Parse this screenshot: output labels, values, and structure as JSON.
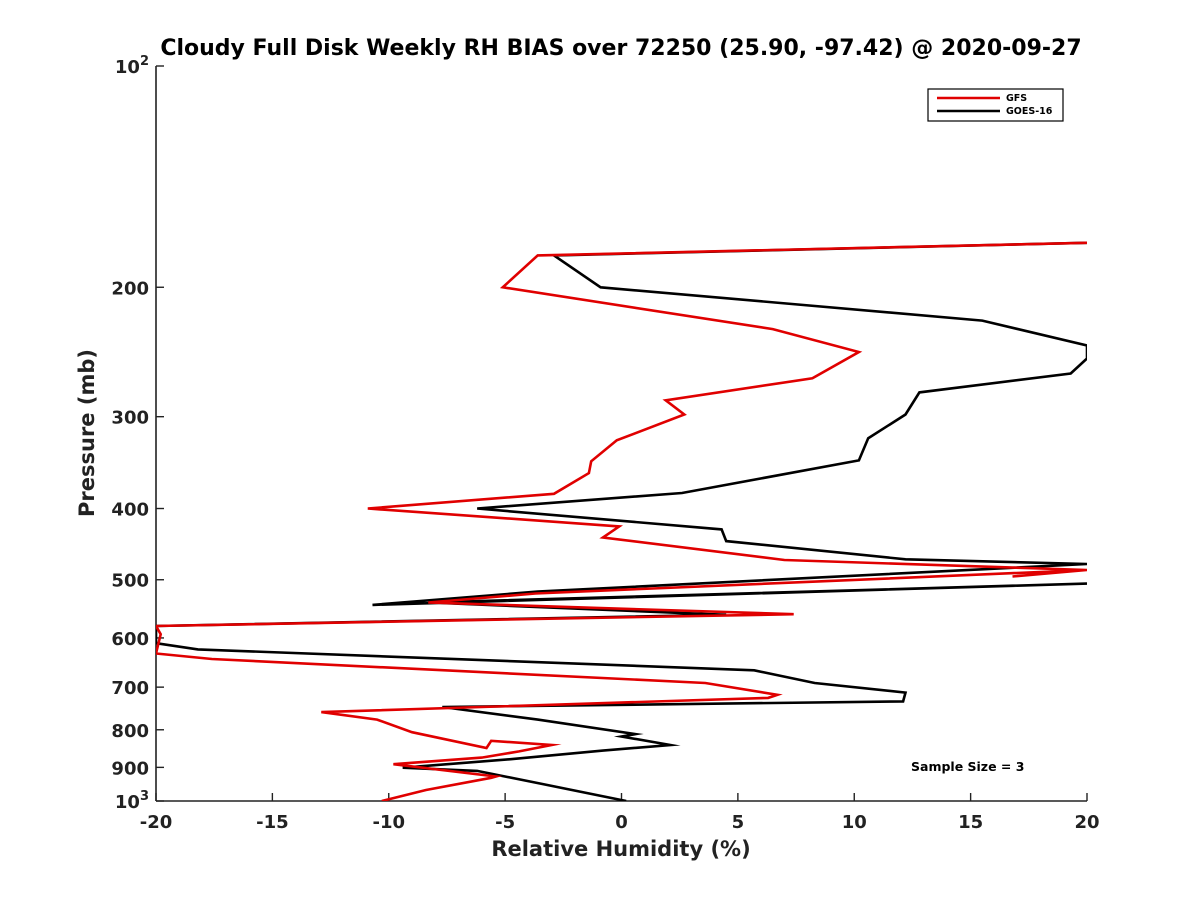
{
  "chart_data": {
    "type": "line",
    "title": "Cloudy Full Disk Weekly RH BIAS over 72250 (25.90, -97.42) @ 2020-09-27",
    "xlabel": "Relative Humidity (%)",
    "ylabel": "Pressure (mb)",
    "xlim": [
      -20,
      20
    ],
    "ylim": [
      100,
      1000
    ],
    "yscale": "log",
    "y_reversed": true,
    "grid": false,
    "legend_position": "top-right",
    "xticks": [
      -20,
      -15,
      -10,
      -5,
      0,
      5,
      10,
      15,
      20
    ],
    "yticks": [
      {
        "value": 100,
        "label": "10",
        "sup": "2"
      },
      {
        "value": 200,
        "label": "200"
      },
      {
        "value": 300,
        "label": "300"
      },
      {
        "value": 400,
        "label": "400"
      },
      {
        "value": 500,
        "label": "500"
      },
      {
        "value": 600,
        "label": "600"
      },
      {
        "value": 700,
        "label": "700"
      },
      {
        "value": 800,
        "label": "800"
      },
      {
        "value": 900,
        "label": "900"
      },
      {
        "value": 1000,
        "label": "10",
        "sup": "3"
      }
    ],
    "series": [
      {
        "name": "GFS",
        "color": "#e00000",
        "x": [
          20,
          -3.6,
          -5.1,
          6.5,
          10.2,
          8.2,
          1.9,
          2.7,
          -0.2,
          -1.3,
          -1.4,
          -2.9,
          -10.9,
          -0.1,
          -0.8,
          7.0,
          20.0,
          16.8,
          20.0,
          -3.7,
          -8.3,
          7.4,
          -20,
          -19.8,
          -20.0,
          -17.6,
          3.6,
          6.7,
          6.3,
          -12.9,
          -10.5,
          -9.0,
          -5.8,
          -5.6,
          -3.0,
          -4.4,
          -6.0,
          -9.8,
          -5.4,
          -5.6,
          -8.4,
          -10.3
        ],
        "y": [
          174,
          181,
          200,
          228,
          245,
          266,
          285,
          298,
          323,
          345,
          358,
          382,
          400,
          423,
          438,
          470,
          485,
          495,
          485,
          522,
          537,
          557,
          578,
          593,
          630,
          641,
          691,
          717,
          724,
          757,
          775,
          806,
          847,
          828,
          839,
          856,
          873,
          891,
          926,
          930,
          966,
          1000
        ]
      },
      {
        "name": "GOES-16",
        "color": "#000000",
        "x": [
          20,
          -2.9,
          -0.9,
          15.5,
          20.0,
          20.0,
          19.3,
          12.8,
          12.2,
          10.6,
          10.2,
          2.6,
          -6.2,
          4.3,
          4.5,
          12.2,
          20.0,
          -3.6,
          -10.7,
          20.0,
          -8.3,
          4.5,
          -20,
          -20.0,
          -18.2,
          5.7,
          8.3,
          12.2,
          12.1,
          -7.7,
          -3.6,
          0.6,
          0.0,
          2.1,
          -0.8,
          -4.7,
          -9.4,
          -6.2,
          -3.4,
          0.2
        ],
        "y": [
          174,
          181,
          200,
          222,
          240,
          250,
          262,
          278,
          298,
          321,
          344,
          381,
          400,
          427,
          443,
          469,
          476,
          519,
          541,
          506,
          537,
          558,
          578,
          610,
          622,
          664,
          691,
          712,
          732,
          745,
          775,
          811,
          817,
          839,
          854,
          877,
          901,
          910,
          948,
          1000
        ]
      }
    ],
    "legend": [
      "GFS",
      "GOES-16"
    ],
    "annotation": "Sample Size = 3"
  }
}
